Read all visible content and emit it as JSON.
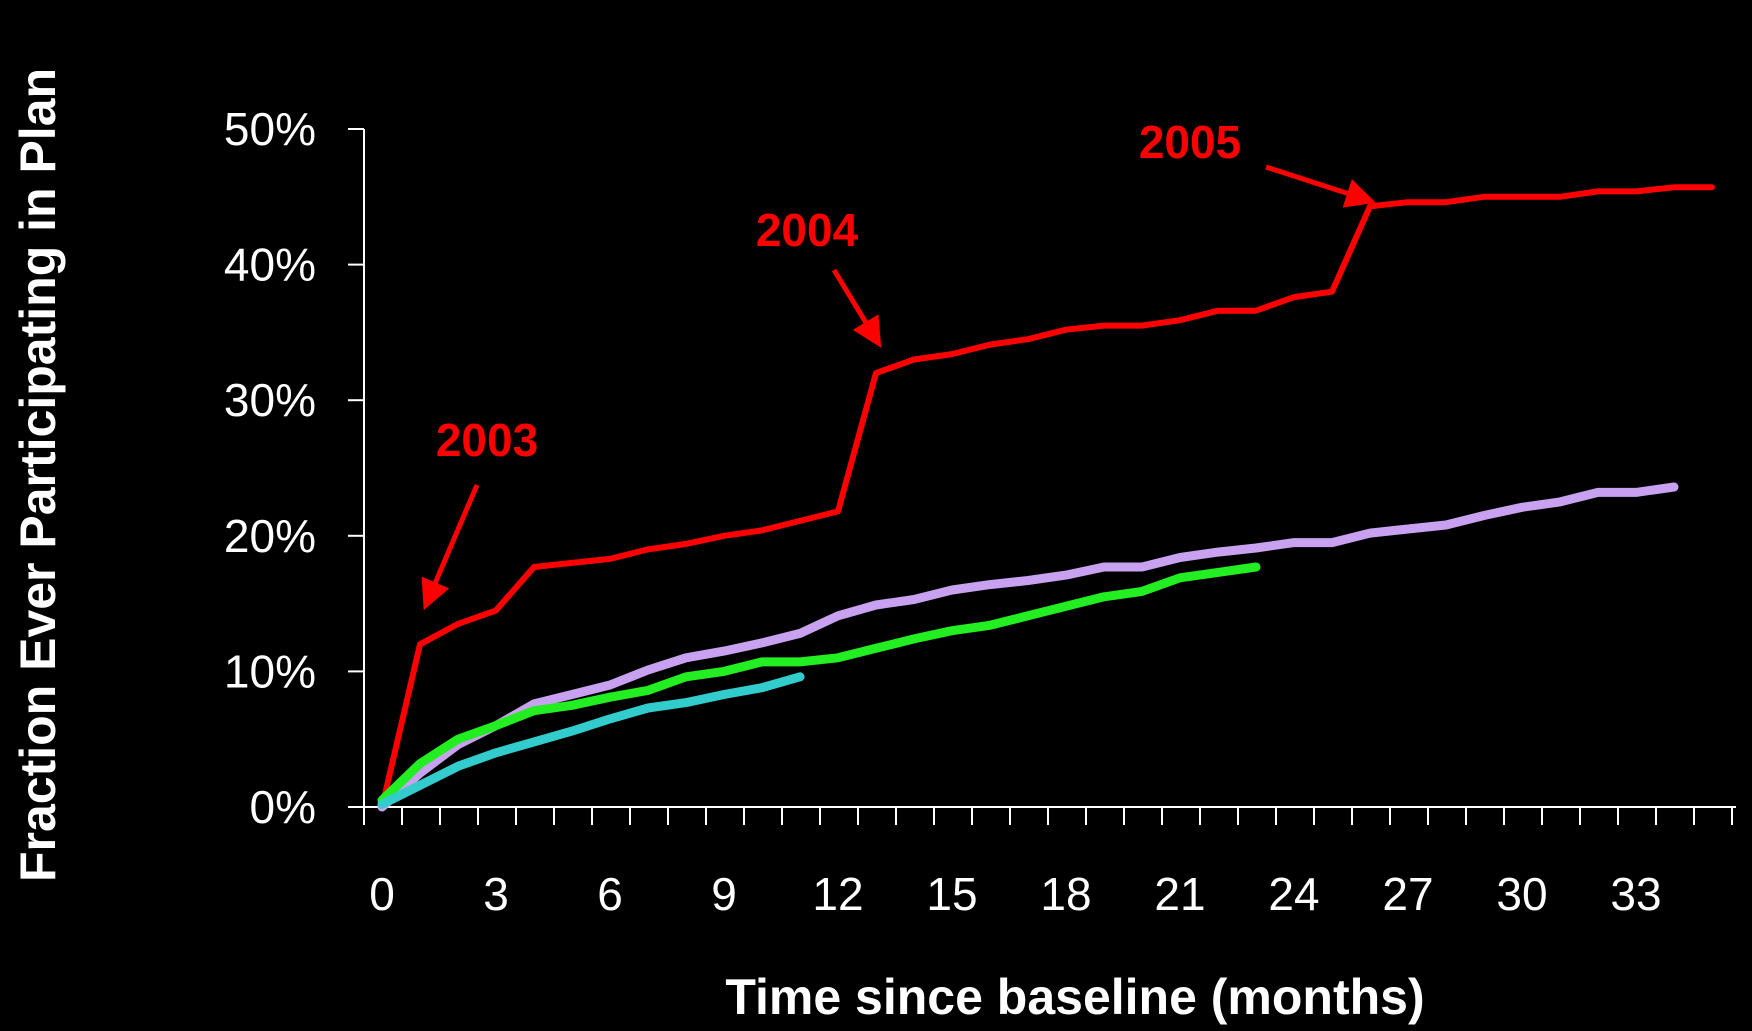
{
  "chart_data": {
    "type": "line",
    "title": "",
    "xlabel": "Time since baseline (months)",
    "ylabel": "Fraction Ever Participating in Plan",
    "xlim": [
      0,
      36
    ],
    "ylim": [
      0,
      50
    ],
    "x_ticks": [
      "0",
      "3",
      "6",
      "9",
      "12",
      "15",
      "18",
      "21",
      "24",
      "27",
      "30",
      "33"
    ],
    "y_ticks": [
      "0%",
      "10%",
      "20%",
      "30%",
      "40%",
      "50%"
    ],
    "grid": false,
    "legend": "none",
    "background": "#000000",
    "axis_color": "#ffffff",
    "series": [
      {
        "color": "#ff0000",
        "x": [
          0,
          1,
          2,
          3,
          4,
          5,
          6,
          7,
          8,
          9,
          10,
          11,
          12,
          13,
          14,
          15,
          16,
          17,
          18,
          19,
          20,
          21,
          22,
          23,
          24,
          25,
          26,
          27,
          28,
          29,
          30,
          31,
          32,
          33,
          34,
          35
        ],
        "values": [
          0,
          12,
          13.5,
          14.5,
          17.7,
          18,
          18.3,
          19,
          19.4,
          20,
          20.4,
          21.1,
          21.8,
          32,
          33,
          33.4,
          34.1,
          34.5,
          35.2,
          35.5,
          35.5,
          35.9,
          36.6,
          36.6,
          37.6,
          38,
          44.3,
          44.6,
          44.6,
          45,
          45,
          45,
          45.4,
          45.4,
          45.7,
          45.7
        ]
      },
      {
        "color": "#c8a2f0",
        "x": [
          0,
          1,
          2,
          3,
          4,
          5,
          6,
          7,
          8,
          9,
          10,
          11,
          12,
          13,
          14,
          15,
          16,
          17,
          18,
          19,
          20,
          21,
          22,
          23,
          24,
          25,
          26,
          27,
          28,
          29,
          30,
          31,
          32,
          33,
          34
        ],
        "values": [
          0,
          2.5,
          4.6,
          6,
          7.6,
          8.3,
          9,
          10.1,
          11,
          11.5,
          12.1,
          12.8,
          14.1,
          14.9,
          15.3,
          16,
          16.4,
          16.7,
          17.1,
          17.7,
          17.7,
          18.4,
          18.8,
          19.1,
          19.5,
          19.5,
          20.2,
          20.5,
          20.8,
          21.5,
          22.1,
          22.5,
          23.2,
          23.2,
          23.6
        ]
      },
      {
        "color": "#22ee22",
        "x": [
          0,
          1,
          2,
          3,
          4,
          5,
          6,
          7,
          8,
          9,
          10,
          11,
          12,
          13,
          14,
          15,
          16,
          17,
          18,
          19,
          20,
          21,
          22,
          23
        ],
        "values": [
          0.5,
          3.2,
          5,
          6,
          7.1,
          7.5,
          8.1,
          8.6,
          9.6,
          10,
          10.7,
          10.7,
          11,
          11.7,
          12.4,
          13,
          13.4,
          14.1,
          14.8,
          15.5,
          15.9,
          16.9,
          17.3,
          17.7
        ]
      },
      {
        "color": "#33cccc",
        "x": [
          0,
          1,
          2,
          3,
          4,
          5,
          6,
          7,
          8,
          9,
          10,
          11
        ],
        "values": [
          0.2,
          1.6,
          3,
          4,
          4.8,
          5.6,
          6.5,
          7.3,
          7.7,
          8.3,
          8.8,
          9.6
        ]
      }
    ],
    "annotations": [
      {
        "text": "2003",
        "color": "#ff0000",
        "target_x": 1.2,
        "target_y": 15.2
      },
      {
        "text": "2004",
        "color": "#ff0000",
        "target_x": 13,
        "target_y": 34.5
      },
      {
        "text": "2005",
        "color": "#ff0000",
        "target_x": 25.9,
        "target_y": 44.8
      }
    ]
  }
}
